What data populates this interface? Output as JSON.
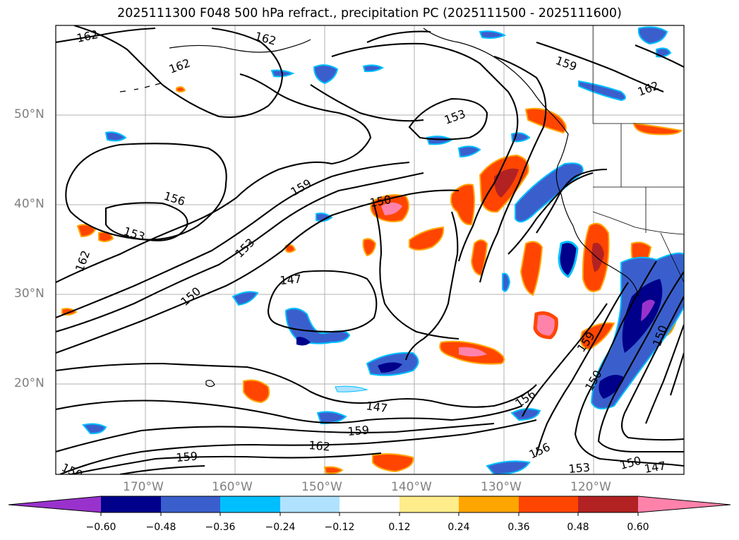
{
  "title": "2025111300 F048 500 hPa refract., precipitation PC (2025111500 - 2025111600)",
  "axes": {
    "lat_labels": [
      "50°N",
      "40°N",
      "30°N",
      "20°N"
    ],
    "lon_labels": [
      "170°W",
      "160°W",
      "150°W",
      "140°W",
      "130°W",
      "120°W"
    ]
  },
  "contour_labels": [
    {
      "text": "162",
      "name": "label-162-nw"
    },
    {
      "text": "162",
      "name": "label-162-n"
    },
    {
      "text": "162",
      "name": "label-162-w"
    },
    {
      "text": "156",
      "name": "label-156-west"
    },
    {
      "text": "153",
      "name": "label-153-west"
    },
    {
      "text": "162",
      "name": "label-162-westedge"
    },
    {
      "text": "153",
      "name": "label-153-center"
    },
    {
      "text": "150",
      "name": "label-150-center"
    },
    {
      "text": "159",
      "name": "label-159-center"
    },
    {
      "text": "150",
      "name": "label-150-low"
    },
    {
      "text": "147",
      "name": "label-147-center"
    },
    {
      "text": "153",
      "name": "label-153-north"
    },
    {
      "text": "159",
      "name": "label-159-ne"
    },
    {
      "text": "162",
      "name": "label-162-ne"
    },
    {
      "text": "147",
      "name": "label-147-south"
    },
    {
      "text": "159",
      "name": "label-159-south"
    },
    {
      "text": "162",
      "name": "label-162-south"
    },
    {
      "text": "159",
      "name": "label-159-sw"
    },
    {
      "text": "150",
      "name": "label-150-sw"
    },
    {
      "text": "156",
      "name": "label-156-se"
    },
    {
      "text": "156",
      "name": "label-156-se2"
    },
    {
      "text": "159",
      "name": "label-159-se"
    },
    {
      "text": "153",
      "name": "label-153-se"
    },
    {
      "text": "150",
      "name": "label-150-se"
    },
    {
      "text": "147",
      "name": "label-147-se"
    },
    {
      "text": "150",
      "name": "label-150-east"
    },
    {
      "text": "150",
      "name": "label-150-east2"
    }
  ],
  "colorbar": {
    "labels": [
      "−0.60",
      "−0.48",
      "−0.36",
      "−0.24",
      "−0.12",
      "0.12",
      "0.24",
      "0.36",
      "0.48",
      "0.60"
    ],
    "colors": [
      "#9932CC",
      "#00008B",
      "#3A5FCD",
      "#00BFFF",
      "#B0E2FF",
      "#FFFFFF",
      "#FFEC8B",
      "#FFA500",
      "#FF4500",
      "#B22222",
      "#FF82AB"
    ]
  }
}
